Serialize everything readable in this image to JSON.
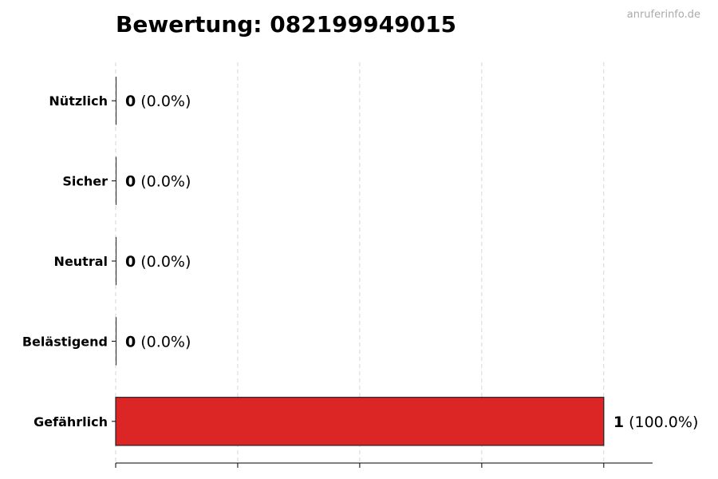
{
  "chart_data": {
    "type": "bar",
    "orientation": "horizontal",
    "title": "Bewertung: 082199949015",
    "watermark": "anruferinfo.de",
    "categories": [
      "Nützlich",
      "Sicher",
      "Neutral",
      "Belästigend",
      "Gefährlich"
    ],
    "values": [
      0,
      0,
      0,
      0,
      1
    ],
    "percent_labels": [
      "(0.0%)",
      "(0.0%)",
      "(0.0%)",
      "(0.0%)",
      "(100.0%)"
    ],
    "colors": [
      "#cccccc",
      "#cccccc",
      "#cccccc",
      "#cccccc",
      "#dc2626"
    ],
    "xlim": [
      0,
      1.1
    ],
    "xticks": [
      0,
      0.25,
      0.5,
      0.75,
      1.0
    ],
    "xtick_labels_shown": false,
    "grid": "x, dashed",
    "xlabel": "",
    "ylabel": ""
  }
}
